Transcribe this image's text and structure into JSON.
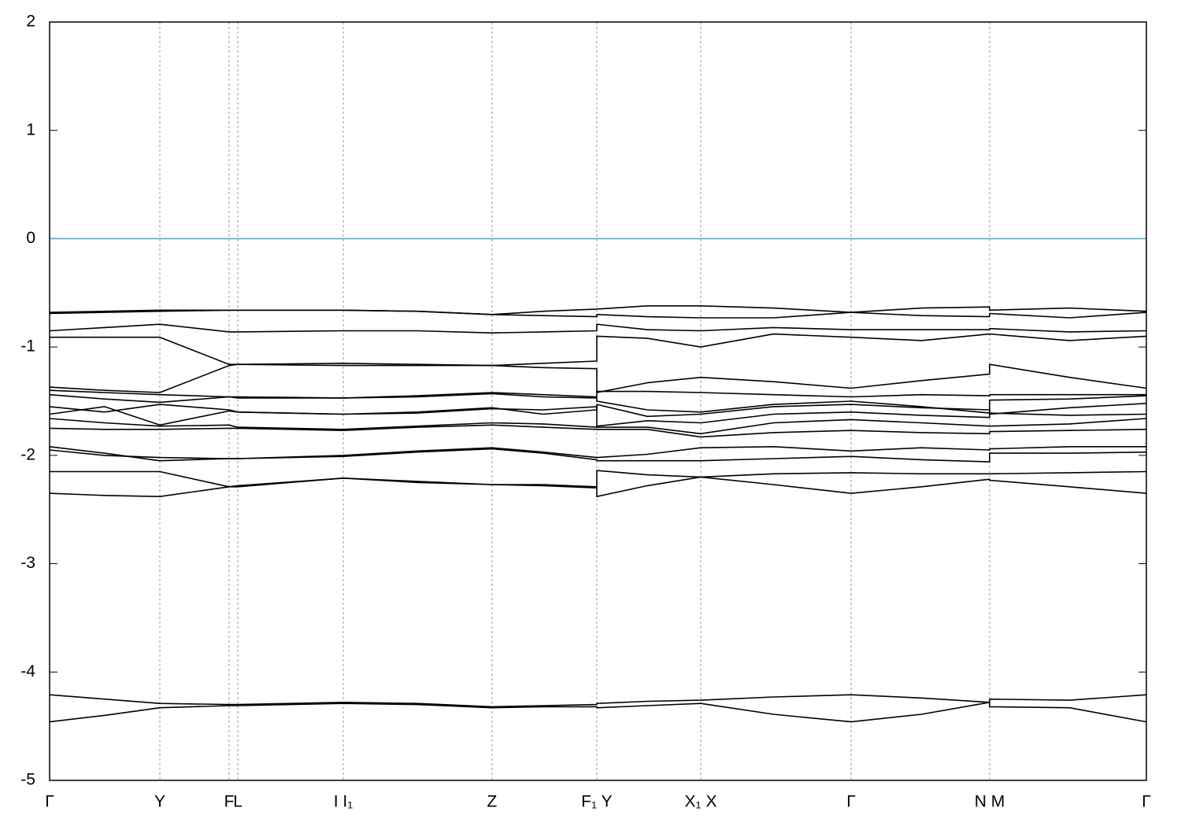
{
  "chart_data": {
    "type": "line",
    "x": [
      0,
      0.5,
      1.005,
      1.637,
      1.716,
      2.678,
      3.35,
      4.034,
      4.5,
      4.989,
      4.989,
      5.45,
      5.937,
      6.6,
      7.308,
      7.95,
      8.571,
      8.571,
      9.3,
      10
    ],
    "xlim": [
      0,
      10
    ],
    "xticks": [
      {
        "value": 0,
        "label": "Γ"
      },
      {
        "value": 1.005,
        "label": "Y"
      },
      {
        "value": 1.637,
        "label": "F"
      },
      {
        "value": 1.716,
        "label": "L"
      },
      {
        "value": 2.678,
        "label": "I  I₁"
      },
      {
        "value": 4.034,
        "label": "Z"
      },
      {
        "value": 4.989,
        "label": "F₁ Y"
      },
      {
        "value": 5.937,
        "label": "X₁ X"
      },
      {
        "value": 7.308,
        "label": "Γ"
      },
      {
        "value": 8.571,
        "label": "N M"
      },
      {
        "value": 10,
        "label": "Γ"
      }
    ],
    "ylim": [
      -5,
      2
    ],
    "yticks": [
      -5,
      -4,
      -3,
      -2,
      -1,
      0,
      1,
      2
    ],
    "xgrid": true,
    "color": "#000000",
    "reference_line": {
      "y": 0,
      "color": "#4aa8c8"
    },
    "series": [
      {
        "values": [
          -0.68,
          -0.67,
          -0.66,
          -0.66,
          -0.66,
          -0.66,
          -0.67,
          -0.7,
          -0.67,
          -0.65,
          -0.65,
          -0.62,
          -0.62,
          -0.64,
          -0.68,
          -0.64,
          -0.63,
          -0.66,
          -0.64,
          -0.67
        ]
      },
      {
        "values": [
          -0.69,
          -0.68,
          -0.67,
          -0.66,
          -0.66,
          -0.66,
          -0.67,
          -0.7,
          -0.71,
          -0.72,
          -0.7,
          -0.72,
          -0.73,
          -0.73,
          -0.68,
          -0.71,
          -0.72,
          -0.69,
          -0.73,
          -0.68
        ]
      },
      {
        "values": [
          -0.85,
          -0.82,
          -0.79,
          -0.86,
          -0.86,
          -0.85,
          -0.85,
          -0.87,
          -0.86,
          -0.85,
          -0.79,
          -0.84,
          -0.85,
          -0.82,
          -0.84,
          -0.84,
          -0.84,
          -0.83,
          -0.86,
          -0.85
        ]
      },
      {
        "values": [
          -0.91,
          -0.91,
          -0.91,
          -1.16,
          -1.16,
          -1.15,
          -1.16,
          -1.17,
          -1.15,
          -1.13,
          -0.9,
          -0.92,
          -1.0,
          -0.88,
          -0.91,
          -0.94,
          -0.88,
          -0.88,
          -0.94,
          -0.9
        ]
      },
      {
        "values": [
          -1.37,
          -1.4,
          -1.42,
          -1.17,
          -1.16,
          -1.17,
          -1.17,
          -1.17,
          -1.19,
          -1.2,
          -1.42,
          -1.33,
          -1.28,
          -1.32,
          -1.38,
          -1.31,
          -1.25,
          -1.16,
          -1.28,
          -1.38
        ]
      },
      {
        "values": [
          -1.4,
          -1.42,
          -1.44,
          -1.46,
          -1.46,
          -1.47,
          -1.45,
          -1.42,
          -1.44,
          -1.46,
          -1.41,
          -1.41,
          -1.42,
          -1.44,
          -1.46,
          -1.44,
          -1.45,
          -1.44,
          -1.44,
          -1.44
        ]
      },
      {
        "values": [
          -1.44,
          -1.48,
          -1.51,
          -1.46,
          -1.47,
          -1.47,
          -1.46,
          -1.43,
          -1.46,
          -1.47,
          -1.5,
          -1.58,
          -1.6,
          -1.53,
          -1.5,
          -1.55,
          -1.61,
          -1.49,
          -1.48,
          -1.45
        ]
      },
      {
        "values": [
          -1.55,
          -1.6,
          -1.53,
          -1.58,
          -1.6,
          -1.62,
          -1.6,
          -1.56,
          -1.62,
          -1.58,
          -1.53,
          -1.64,
          -1.62,
          -1.55,
          -1.53,
          -1.56,
          -1.58,
          -1.62,
          -1.56,
          -1.52
        ]
      },
      {
        "values": [
          -1.62,
          -1.55,
          -1.72,
          -1.59,
          -1.6,
          -1.62,
          -1.61,
          -1.57,
          -1.58,
          -1.55,
          -1.73,
          -1.68,
          -1.7,
          -1.62,
          -1.6,
          -1.63,
          -1.65,
          -1.61,
          -1.63,
          -1.62
        ]
      },
      {
        "values": [
          -1.66,
          -1.7,
          -1.73,
          -1.72,
          -1.74,
          -1.76,
          -1.73,
          -1.7,
          -1.71,
          -1.74,
          -1.74,
          -1.74,
          -1.8,
          -1.7,
          -1.67,
          -1.7,
          -1.73,
          -1.73,
          -1.71,
          -1.66
        ]
      },
      {
        "values": [
          -1.75,
          -1.76,
          -1.76,
          -1.75,
          -1.75,
          -1.77,
          -1.74,
          -1.72,
          -1.74,
          -1.76,
          -1.76,
          -1.76,
          -1.83,
          -1.79,
          -1.77,
          -1.79,
          -1.8,
          -1.78,
          -1.77,
          -1.76
        ]
      },
      {
        "values": [
          -1.92,
          -1.98,
          -2.05,
          -2.03,
          -2.03,
          -2.0,
          -1.96,
          -1.93,
          -1.97,
          -2.02,
          -2.02,
          -1.99,
          -1.93,
          -1.92,
          -1.96,
          -1.93,
          -1.95,
          -1.94,
          -1.92,
          -1.92
        ]
      },
      {
        "values": [
          -1.95,
          -2.0,
          -2.02,
          -2.03,
          -2.03,
          -2.01,
          -1.97,
          -1.94,
          -1.98,
          -2.04,
          -2.05,
          -2.05,
          -2.05,
          -2.03,
          -2.01,
          -2.04,
          -2.06,
          -1.98,
          -1.98,
          -1.97
        ]
      },
      {
        "values": [
          -2.15,
          -2.15,
          -2.15,
          -2.29,
          -2.29,
          -2.21,
          -2.24,
          -2.27,
          -2.27,
          -2.29,
          -2.14,
          -2.18,
          -2.2,
          -2.17,
          -2.16,
          -2.17,
          -2.17,
          -2.17,
          -2.16,
          -2.15
        ]
      },
      {
        "values": [
          -2.35,
          -2.37,
          -2.38,
          -2.29,
          -2.28,
          -2.21,
          -2.25,
          -2.27,
          -2.28,
          -2.3,
          -2.38,
          -2.28,
          -2.2,
          -2.27,
          -2.35,
          -2.29,
          -2.22,
          -2.23,
          -2.29,
          -2.35
        ]
      },
      {
        "values": [
          -4.21,
          -4.25,
          -4.29,
          -4.3,
          -4.3,
          -4.28,
          -4.29,
          -4.32,
          -4.31,
          -4.3,
          -4.29,
          -4.27,
          -4.26,
          -4.23,
          -4.21,
          -4.24,
          -4.28,
          -4.25,
          -4.26,
          -4.21
        ]
      },
      {
        "values": [
          -4.46,
          -4.4,
          -4.33,
          -4.31,
          -4.31,
          -4.29,
          -4.3,
          -4.33,
          -4.32,
          -4.32,
          -4.33,
          -4.31,
          -4.29,
          -4.39,
          -4.46,
          -4.39,
          -4.28,
          -4.32,
          -4.33,
          -4.46
        ]
      }
    ]
  }
}
